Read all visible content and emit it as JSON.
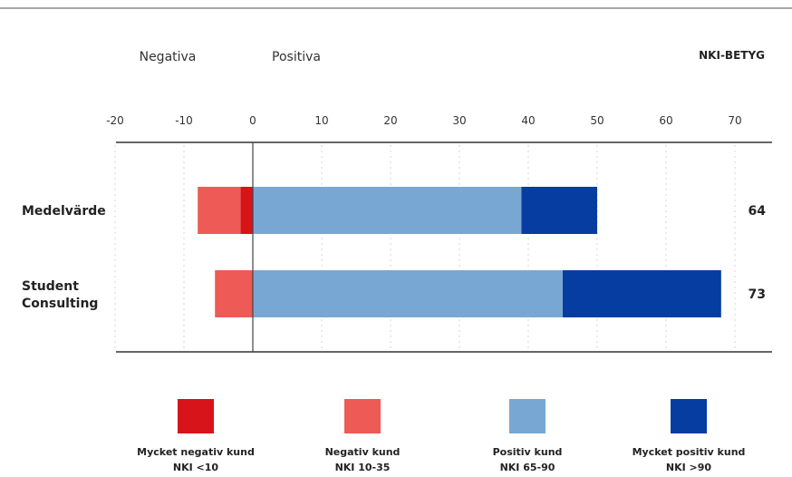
{
  "header": {
    "negative_label": "Negativa",
    "positive_label": "Positiva",
    "score_header": "NKI-BETYG"
  },
  "chart_data": {
    "type": "bar",
    "orientation": "horizontal",
    "stacked": true,
    "xlim": [
      -20,
      75
    ],
    "xticks": [
      -20,
      -10,
      0,
      10,
      20,
      30,
      40,
      50,
      60,
      70
    ],
    "xtick_labels": [
      "-20",
      "-10",
      "0",
      "10",
      "20",
      "30",
      "40",
      "50",
      "60",
      "70"
    ],
    "grid": true,
    "legend_position": "bottom",
    "categories": [
      {
        "label_lines": [
          "Medelvärde"
        ],
        "score": "64"
      },
      {
        "label_lines": [
          "Student",
          "Consulting"
        ],
        "score": "73"
      }
    ],
    "series": [
      {
        "name": "Mycket negativ kund",
        "sublabel": "NKI <10",
        "color": "#d7141a",
        "values": [
          -1.8,
          0
        ]
      },
      {
        "name": "Negativ kund",
        "sublabel": "NKI 10-35",
        "color": "#ee5a55",
        "values": [
          -6.2,
          -5.5
        ]
      },
      {
        "name": "Positiv kund",
        "sublabel": "NKI 65-90",
        "color": "#79a7d3",
        "values": [
          39,
          45
        ]
      },
      {
        "name": "Mycket positiv kund",
        "sublabel": "NKI >90",
        "color": "#053da0",
        "values": [
          11,
          23
        ]
      }
    ]
  }
}
